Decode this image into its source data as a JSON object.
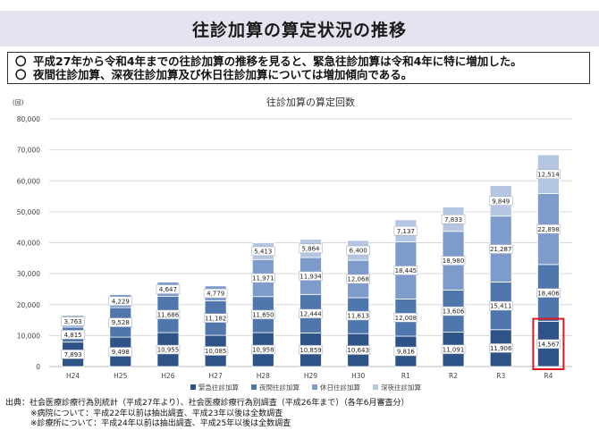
{
  "header": {
    "title": "往診加算の算定状況の推移"
  },
  "summary": {
    "mark": "〇",
    "points": [
      "平成27年から令和4年までの往診加算の推移を見ると、緊急往診加算は令和4年に特に増加した。",
      "夜間往診加算、深夜往診加算及び休日往診加算については増加傾向である。"
    ]
  },
  "chart_data": {
    "type": "bar",
    "stacked": true,
    "title": "往診加算の算定回数",
    "ylabel": "(回)",
    "xlabel": "",
    "ylim": [
      0,
      80000
    ],
    "yticks": [
      "0",
      "10,000",
      "20,000",
      "30,000",
      "40,000",
      "50,000",
      "60,000",
      "70,000",
      "80,000"
    ],
    "grid": true,
    "legend_position": "bottom",
    "categories": [
      "H24",
      "H25",
      "H26",
      "H27",
      "H28",
      "H29",
      "H30",
      "R1",
      "R2",
      "R3",
      "R4"
    ],
    "series": [
      {
        "name": "緊急往診加算",
        "color": "#2e5386",
        "values": [
          7893,
          9498,
          10955,
          10085,
          10958,
          10859,
          10643,
          9816,
          11091,
          11906,
          14567
        ],
        "labels": [
          "7,893",
          "9,498",
          "10,955",
          "10,085",
          "10,958",
          "10,859",
          "10,643",
          "9,816",
          "11,091",
          "11,906",
          "14,567"
        ]
      },
      {
        "name": "夜間往診加算",
        "color": "#4f77ae",
        "values": [
          4815,
          9528,
          11686,
          11182,
          11650,
          12444,
          11613,
          12008,
          13606,
          15411,
          18406
        ],
        "labels": [
          "4,815",
          "9,528",
          "11,686",
          "11,182",
          "11,650",
          "12,444",
          "11,613",
          "12,008",
          "13,606",
          "15,411",
          "18,406"
        ]
      },
      {
        "name": "休日往診加算",
        "color": "#7d9ccb",
        "values": [
          3763,
          4229,
          4647,
          4779,
          11971,
          11934,
          12068,
          18445,
          18980,
          21287,
          22898
        ],
        "labels": [
          "3,763",
          "4,229",
          "4,647",
          "4,779",
          "11,971",
          "11,934",
          "12,068",
          "18,445",
          "18,980",
          "21,287",
          "22,898"
        ]
      },
      {
        "name": "深夜往診加算",
        "color": "#b4c6e1",
        "values": [
          0,
          0,
          0,
          0,
          5413,
          5864,
          6400,
          7137,
          7833,
          9849,
          12514
        ],
        "labels": [
          "",
          "",
          "",
          "",
          "5,413",
          "5,864",
          "6,400",
          "7,137",
          "7,833",
          "9,849",
          "12,514"
        ]
      }
    ],
    "highlight": {
      "category": "R4",
      "series": "緊急往診加算",
      "color": "#e0141e"
    }
  },
  "source": {
    "lines": [
      "出典：社会医療診療行為別統計（平成27年より）、社会医療診療行為別調査（平成26年まで）（各年6月審査分）",
      "※病院について：平成22年以前は抽出調査、平成23年以後は全数調査",
      "※診療所について：平成24年以前は抽出調査、平成25年以後は全数調査"
    ]
  }
}
